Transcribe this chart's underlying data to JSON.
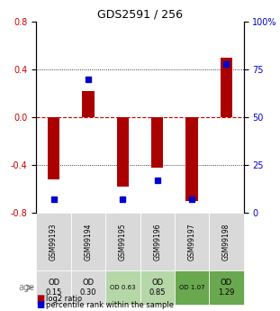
{
  "title": "GDS2591 / 256",
  "samples": [
    "GSM99193",
    "GSM99194",
    "GSM99195",
    "GSM99196",
    "GSM99197",
    "GSM99198"
  ],
  "log2_ratios": [
    -0.52,
    0.22,
    -0.58,
    -0.42,
    -0.7,
    0.5
  ],
  "percentile_ranks": [
    7,
    70,
    7,
    17,
    7,
    78
  ],
  "age_labels": [
    "OD\n0.15",
    "OD\n0.30",
    "OD 0.63",
    "OD\n0.85",
    "OD 1.07",
    "OD\n1.29"
  ],
  "age_bg_colors": [
    "#d9d9d9",
    "#d9d9d9",
    "#b6d7a8",
    "#b6d7a8",
    "#6aa84f",
    "#6aa84f"
  ],
  "age_fontsize_flags": [
    true,
    true,
    false,
    true,
    false,
    true
  ],
  "ylim": [
    -0.8,
    0.8
  ],
  "yticks_left": [
    -0.8,
    -0.4,
    0.0,
    0.4,
    0.8
  ],
  "yticks_right": [
    0,
    25,
    50,
    75,
    100
  ],
  "bar_color": "#aa0000",
  "dot_color": "#0000cc",
  "background_color": "#ffffff",
  "header_bg": "#d9d9d9",
  "legend_red": "log2 ratio",
  "legend_blue": "percentile rank within the sample"
}
